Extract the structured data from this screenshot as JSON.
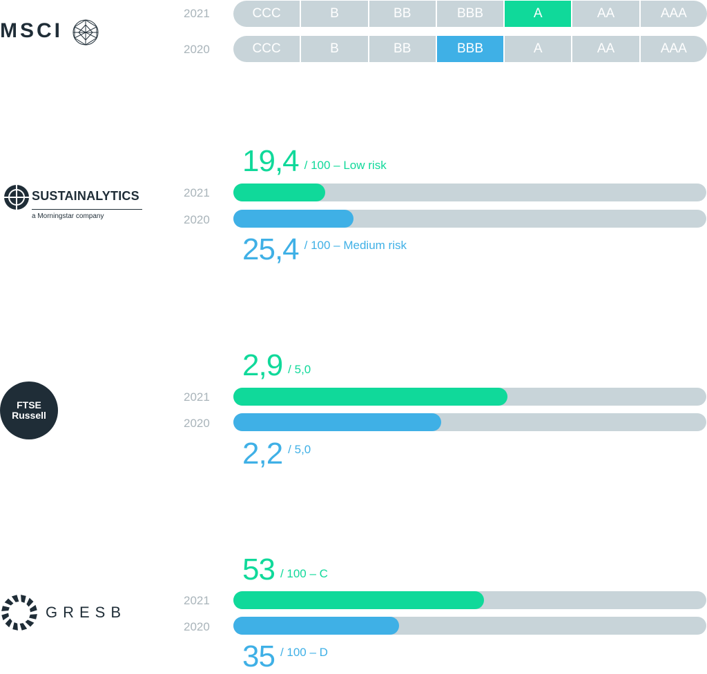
{
  "colors": {
    "green": "#10d99a",
    "blue": "#3fb0e6",
    "track": "#c8d4d9",
    "year_text": "#a9b4ba",
    "logo": "#1f2d37"
  },
  "chart_data": [
    {
      "type": "table",
      "provider": "MSCI",
      "scale": [
        "CCC",
        "B",
        "BB",
        "BBB",
        "A",
        "AA",
        "AAA"
      ],
      "ratings": [
        {
          "year": "2021",
          "value": "A"
        },
        {
          "year": "2020",
          "value": "BBB"
        }
      ]
    },
    {
      "type": "bar",
      "provider": "SUSTAINALYTICS",
      "max": 100,
      "series": [
        {
          "year": "2021",
          "value": 19.4,
          "label": "19,4",
          "suffix": "/ 100 – Low risk"
        },
        {
          "year": "2020",
          "value": 25.4,
          "label": "25,4",
          "suffix": "/ 100 – Medium risk"
        }
      ]
    },
    {
      "type": "bar",
      "provider": "FTSE Russell",
      "max": 5.0,
      "series": [
        {
          "year": "2021",
          "value": 2.9,
          "label": "2,9",
          "suffix": "/ 5,0"
        },
        {
          "year": "2020",
          "value": 2.2,
          "label": "2,2",
          "suffix": "/ 5,0"
        }
      ]
    },
    {
      "type": "bar",
      "provider": "GRESB",
      "max": 100,
      "series": [
        {
          "year": "2021",
          "value": 53,
          "label": "53",
          "suffix": "/ 100 – C"
        },
        {
          "year": "2020",
          "value": 35,
          "label": "35",
          "suffix": "/ 100 – D"
        }
      ]
    }
  ],
  "logos": {
    "msci": {
      "text": "MSCI",
      "icon": "globe-grid-icon"
    },
    "sustainalytics": {
      "text": "SUSTAINALYTICS",
      "tagline": "a Morningstar company",
      "icon": "radar-target-icon"
    },
    "ftse": {
      "line1": "FTSE",
      "line2": "Russell"
    },
    "gresb": {
      "text": "GRESB",
      "icon": "segmented-ring-icon"
    }
  }
}
